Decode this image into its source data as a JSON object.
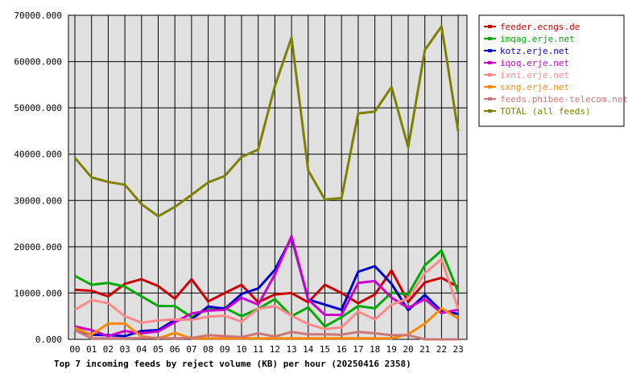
{
  "chart_data": {
    "type": "line",
    "title": "Top 7 incoming feeds by reject volume (KB) per hour (20250416 2358)",
    "ylim": [
      0,
      70000
    ],
    "y_ticks": [
      "0.000",
      "10000.000",
      "20000.000",
      "30000.000",
      "40000.000",
      "50000.000",
      "60000.000",
      "70000.000"
    ],
    "y_tick_values": [
      0,
      10000,
      20000,
      30000,
      40000,
      50000,
      60000,
      70000
    ],
    "categories": [
      "00",
      "01",
      "02",
      "03",
      "04",
      "05",
      "06",
      "07",
      "08",
      "09",
      "10",
      "11",
      "12",
      "13",
      "14",
      "15",
      "16",
      "17",
      "18",
      "19",
      "20",
      "21",
      "22",
      "23"
    ],
    "grid": true,
    "legend_position": "right",
    "series": [
      {
        "name": "feeder.ecngs.de",
        "color": "#cc0000",
        "values": [
          10700,
          10500,
          9300,
          12000,
          13000,
          11500,
          8800,
          13000,
          8200,
          10000,
          11800,
          8000,
          9700,
          10000,
          8000,
          11800,
          10000,
          7800,
          9700,
          14900,
          8100,
          12300,
          13300,
          11300
        ]
      },
      {
        "name": "imqag.erje.net",
        "color": "#00aa00",
        "values": [
          13700,
          11800,
          12200,
          11400,
          9300,
          7200,
          7200,
          4800,
          6600,
          6800,
          5000,
          6600,
          8700,
          5000,
          6900,
          2800,
          4800,
          7200,
          6700,
          10100,
          9700,
          16000,
          19200,
          10200
        ]
      },
      {
        "name": "kotz.erje.net",
        "color": "#0000cc",
        "values": [
          2200,
          1000,
          900,
          700,
          1800,
          2000,
          4200,
          4300,
          7100,
          6600,
          9800,
          11000,
          15000,
          22000,
          8600,
          7500,
          6400,
          14600,
          15800,
          12000,
          6300,
          9600,
          6100,
          5500
        ]
      },
      {
        "name": "iqoq.erje.net",
        "color": "#cc00cc",
        "values": [
          2800,
          2000,
          700,
          1800,
          1300,
          1700,
          3700,
          5600,
          6200,
          6400,
          9000,
          7500,
          14000,
          22300,
          8600,
          5300,
          5300,
          12200,
          12600,
          9000,
          6800,
          8700,
          5700,
          6400
        ]
      },
      {
        "name": "ixni.erje.net",
        "color": "#ff8888",
        "values": [
          6400,
          8500,
          7800,
          5000,
          3600,
          4100,
          4300,
          4200,
          4900,
          5100,
          3800,
          6600,
          7200,
          5100,
          3300,
          2200,
          2600,
          6000,
          4300,
          7500,
          8800,
          14300,
          17300,
          6600
        ]
      },
      {
        "name": "sxng.erje.net",
        "color": "#ff8800",
        "values": [
          2500,
          1000,
          3400,
          3400,
          600,
          200,
          1400,
          200,
          200,
          200,
          200,
          200,
          200,
          200,
          200,
          200,
          200,
          200,
          200,
          200,
          1100,
          3400,
          6700,
          4500
        ]
      },
      {
        "name": "feeds.phibee-telecom.net",
        "color": "#cc7777",
        "values": [
          2000,
          200,
          200,
          200,
          300,
          300,
          200,
          300,
          900,
          700,
          500,
          1300,
          600,
          1600,
          1100,
          1100,
          1000,
          1600,
          1300,
          900,
          900,
          0,
          0,
          0
        ]
      },
      {
        "name": "TOTAL (all feeds)",
        "color": "#808000",
        "values": [
          39200,
          35000,
          34000,
          33400,
          29200,
          26600,
          28600,
          31200,
          33900,
          35300,
          39400,
          41000,
          54700,
          65200,
          36500,
          30200,
          30500,
          48800,
          49200,
          54500,
          41500,
          62500,
          67600,
          44900
        ]
      }
    ]
  }
}
